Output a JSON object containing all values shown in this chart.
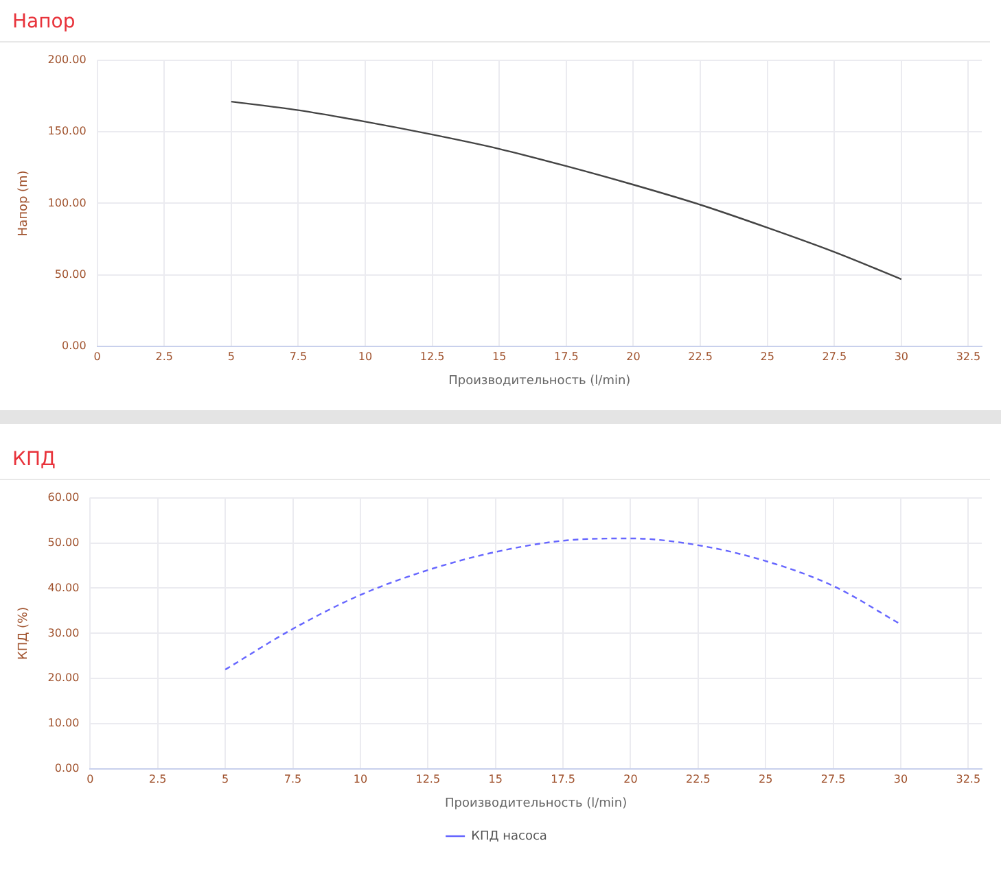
{
  "chart_data": [
    {
      "type": "line",
      "title": "Напор",
      "xlabel": "Производительность (l/min)",
      "ylabel": "Напор (m)",
      "x": [
        5,
        7.5,
        10,
        12.5,
        15,
        17.5,
        20,
        22.5,
        25,
        27.5,
        30
      ],
      "series": [
        {
          "color": "#444444",
          "values": [
            171,
            165,
            157,
            148,
            138,
            126,
            113,
            99,
            83,
            66,
            47
          ]
        }
      ],
      "xlim": [
        0,
        33
      ],
      "xticks": [
        0,
        2.5,
        5,
        7.5,
        10,
        12.5,
        15,
        17.5,
        20,
        22.5,
        25,
        27.5,
        30,
        32.5
      ],
      "ylim": [
        0,
        200
      ],
      "yticks": [
        {
          "value": 0,
          "label": "0.00"
        },
        {
          "value": 50,
          "label": "50.00"
        },
        {
          "value": 100,
          "label": "100.00"
        },
        {
          "value": 150,
          "label": "150.00"
        },
        {
          "value": 200,
          "label": "200.00"
        }
      ],
      "grid": true,
      "legend": false,
      "marker": "none",
      "line_style": "solid"
    },
    {
      "type": "line",
      "title": "КПД",
      "xlabel": "Производительность (l/min)",
      "ylabel": "КПД (%)",
      "x": [
        5,
        7.5,
        10,
        12.5,
        15,
        17.5,
        20,
        22.5,
        25,
        27.5,
        30
      ],
      "series": [
        {
          "name": "КПД насоса",
          "color": "#6666ff",
          "values": [
            22,
            31,
            38.5,
            44,
            48,
            50.5,
            51,
            49.5,
            46,
            40.5,
            32
          ]
        }
      ],
      "xlim": [
        0,
        33
      ],
      "xticks": [
        0,
        2.5,
        5,
        7.5,
        10,
        12.5,
        15,
        17.5,
        20,
        22.5,
        25,
        27.5,
        30,
        32.5
      ],
      "ylim": [
        0,
        60
      ],
      "yticks": [
        {
          "value": 0,
          "label": "0.00"
        },
        {
          "value": 10,
          "label": "10.00"
        },
        {
          "value": 20,
          "label": "20.00"
        },
        {
          "value": 30,
          "label": "30.00"
        },
        {
          "value": 40,
          "label": "40.00"
        },
        {
          "value": 50,
          "label": "50.00"
        },
        {
          "value": 60,
          "label": "60.00"
        }
      ],
      "grid": true,
      "legend": "bottom",
      "marker": "none",
      "line_style": "dashed"
    }
  ]
}
